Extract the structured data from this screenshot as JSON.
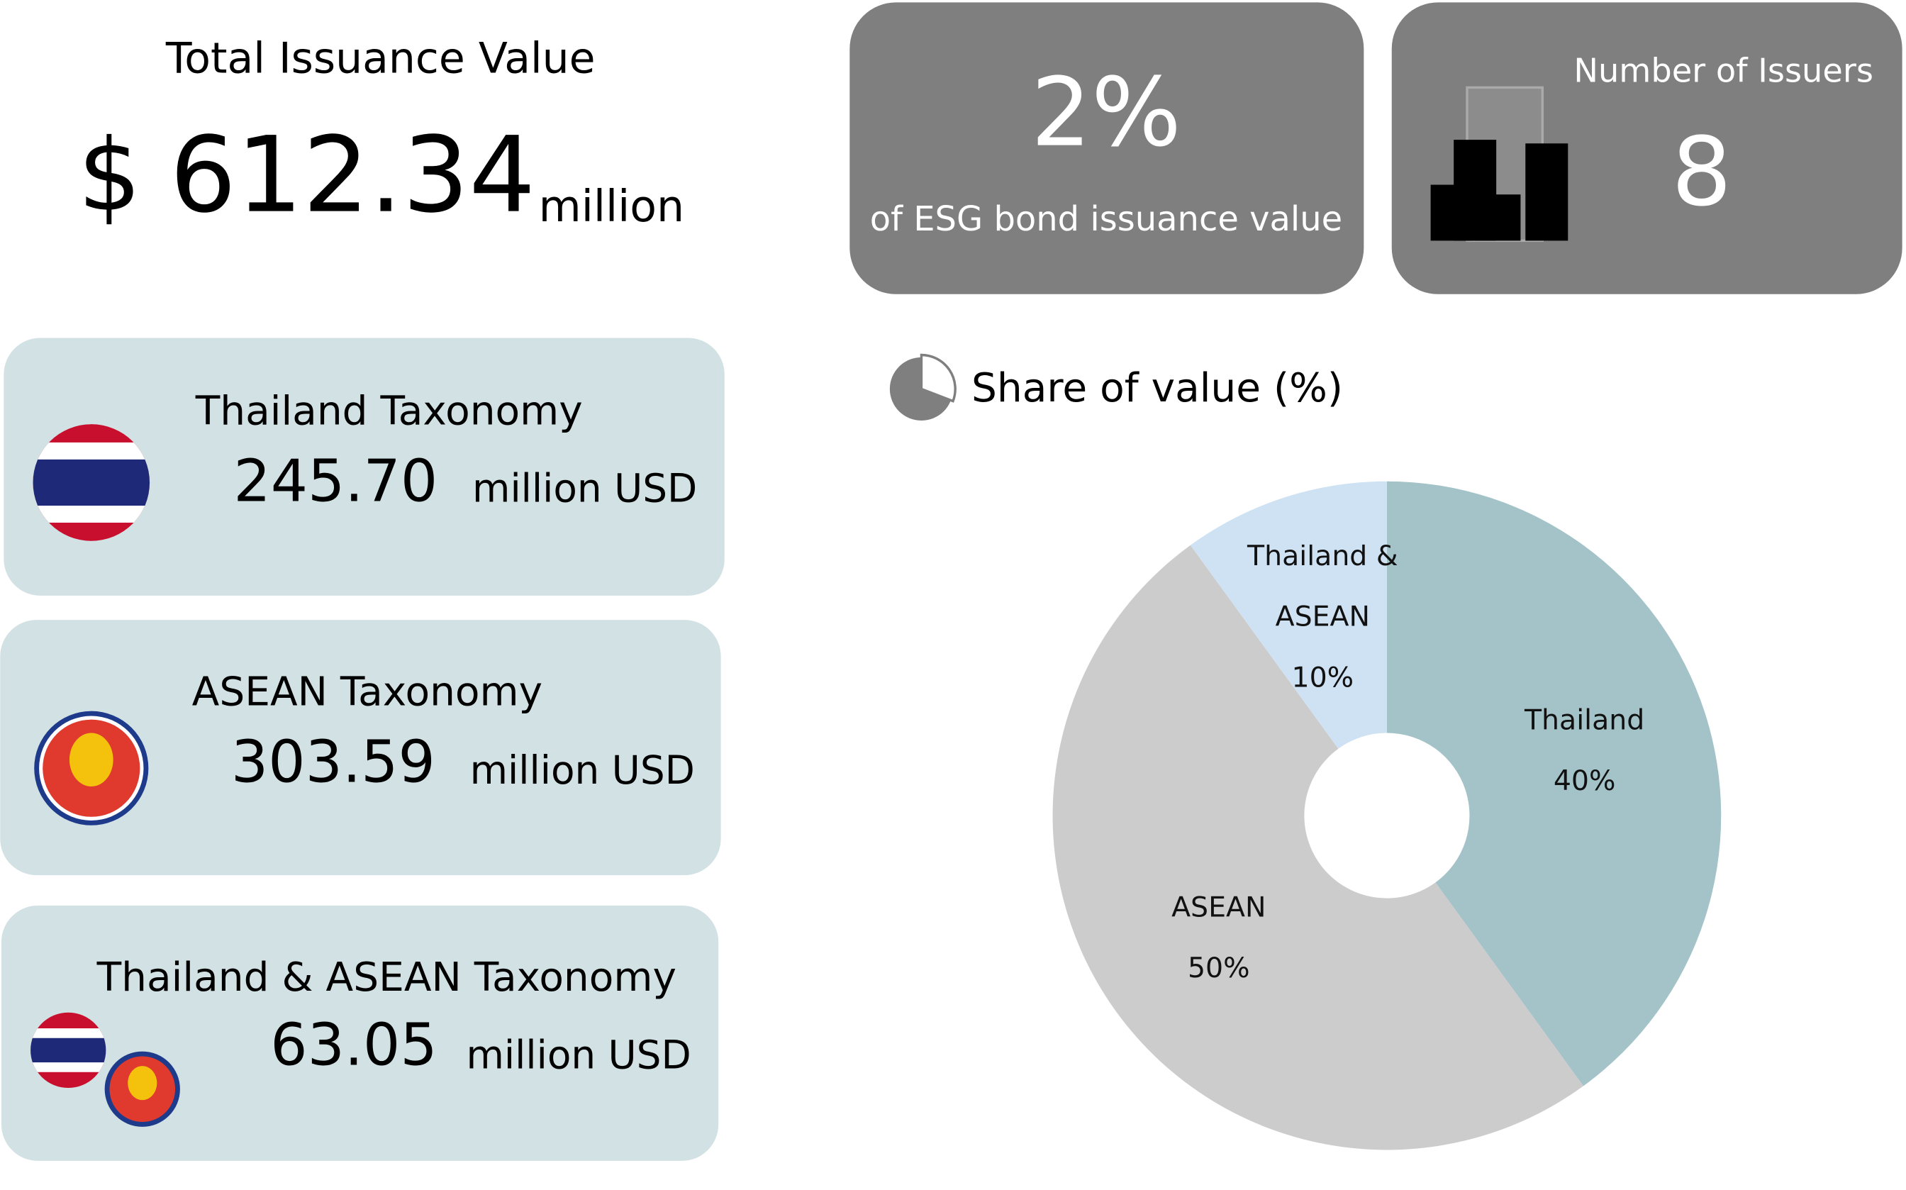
{
  "total": {
    "title": "Total Issuance Value",
    "currency": "$",
    "value": "612.34",
    "unit": "million"
  },
  "share_card": {
    "value": "2%",
    "caption": "of ESG bond issuance value"
  },
  "issuers_card": {
    "label": "Number of Issuers",
    "value": "8"
  },
  "cards": [
    {
      "name": "Thailand Taxonomy",
      "value": "245.70",
      "unit": "million USD"
    },
    {
      "name": "ASEAN Taxonomy",
      "value": "303.59",
      "unit": "million USD"
    },
    {
      "name": "Thailand & ASEAN Taxonomy",
      "value": "63.05",
      "unit": "million USD"
    }
  ],
  "chart_data": {
    "type": "pie",
    "title": "Share of value (%)",
    "donut": true,
    "categories": [
      "Thailand",
      "ASEAN",
      "Thailand & ASEAN"
    ],
    "values": [
      40,
      50,
      10
    ],
    "value_labels": [
      "40%",
      "50%",
      "10%"
    ],
    "colors": [
      "#a3c3c8",
      "#cccccc",
      "#cfe2f3"
    ]
  }
}
